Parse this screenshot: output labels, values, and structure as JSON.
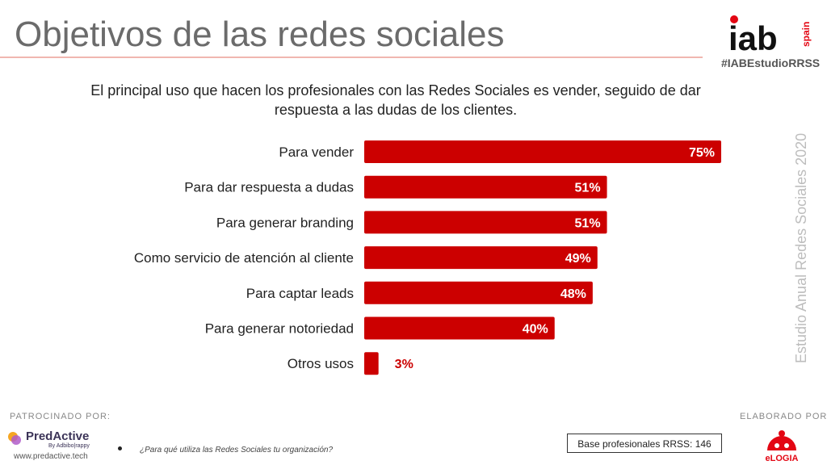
{
  "title": "Objetivos de las redes sociales",
  "hashtag": "#IABEstudioRRSS",
  "logo": {
    "main": "iab",
    "sub": "spain"
  },
  "subtitle_line1": "El principal uso que hacen los profesionales con las Redes Sociales es vender, seguido de dar",
  "subtitle_line2": "respuesta a las dudas de los clientes.",
  "side_label": "Estudio Anual Redes Sociales 2020",
  "sponsor": {
    "label": "PATROCINADO POR:",
    "name": "PredActive",
    "by": "By Adbibo|rappy",
    "url": "www.predactive.tech"
  },
  "made_by_label": "ELABORADO POR:",
  "made_by_name": "eLOGIA",
  "question": "¿Para qué utiliza las Redes Sociales tu organización?",
  "base": "Base profesionales RRSS: 146",
  "colors": {
    "bar": "#cc0000",
    "title": "#6b6b6b"
  },
  "chart_data": {
    "type": "bar",
    "orientation": "horizontal",
    "categories": [
      "Para vender",
      "Para dar respuesta a dudas",
      "Para generar branding",
      "Como servicio de atención al cliente",
      "Para captar leads",
      "Para generar notoriedad",
      "Otros usos"
    ],
    "values": [
      75,
      51,
      51,
      49,
      48,
      40,
      3
    ],
    "data_labels": [
      "75%",
      "51%",
      "51%",
      "49%",
      "48%",
      "40%",
      "3%"
    ],
    "unit": "%",
    "xlim": [
      0,
      100
    ],
    "grid": false,
    "legend": "none"
  }
}
